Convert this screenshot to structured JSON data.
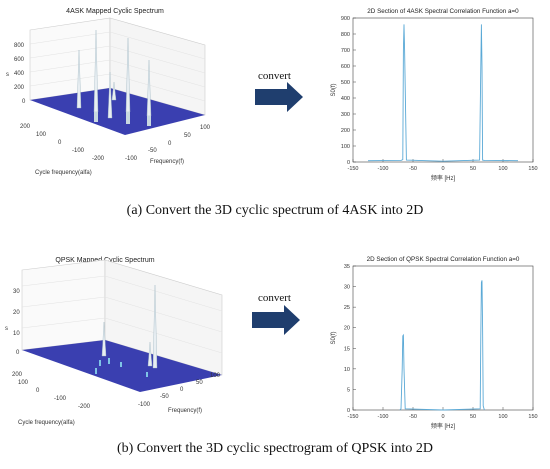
{
  "panels": [
    {
      "id": "a",
      "caption": "(a) Convert the 3D cyclic spectrum of 4ASK into 2D",
      "arrow_label": "convert",
      "plot3d": {
        "title": "4ASK Mapped Cyclic Spectrum",
        "zlabel": "s",
        "xlabel": "Frequency(f)",
        "ylabel": "Cycle frequency(alfa)",
        "zticks": [
          "0",
          "200",
          "400",
          "600",
          "800"
        ],
        "xticks": [
          "200",
          "100",
          "0",
          "-100",
          "-200"
        ],
        "freqticks": [
          "-100",
          "-50",
          "0",
          "50",
          "100"
        ]
      },
      "chart": {
        "type": "line",
        "title": "2D Section of 4ASK Spectral Correlation Function a=0",
        "xlabel": "频率 [Hz]",
        "ylabel": "S0(f)",
        "xlim": [
          -150,
          150
        ],
        "ylim": [
          0,
          900
        ],
        "xticks": [
          "-150",
          "-100",
          "-50",
          "0",
          "50",
          "100",
          "150"
        ],
        "yticks": [
          "0",
          "100",
          "200",
          "300",
          "400",
          "500",
          "600",
          "700",
          "800",
          "900"
        ],
        "x": [
          -125,
          -70,
          -67,
          -66,
          -65,
          -64,
          -61,
          0,
          61,
          63,
          64,
          65,
          66,
          69,
          125
        ],
        "y": [
          8,
          10,
          15,
          700,
          860,
          700,
          12,
          5,
          12,
          600,
          860,
          600,
          12,
          10,
          8
        ]
      }
    },
    {
      "id": "b",
      "caption": "(b) Convert the 3D cyclic spectrogram of QPSK into 2D",
      "arrow_label": "convert",
      "plot3d": {
        "title": "QPSK Mapped Cyclic Spectrum",
        "zlabel": "s",
        "xlabel": "Frequency(f)",
        "ylabel": "Cycle frequency(alfa)",
        "zticks": [
          "0",
          "10",
          "20",
          "30"
        ],
        "xticks": [
          "200",
          "100",
          "0",
          "-100",
          "-200"
        ],
        "freqticks": [
          "-100",
          "-50",
          "0",
          "50",
          "100"
        ]
      },
      "chart": {
        "type": "line",
        "title": "2D Section of QPSK Spectral Correlation Function a=0",
        "xlabel": "频率 [Hz]",
        "ylabel": "S0(f)",
        "xlim": [
          -150,
          150
        ],
        "ylim": [
          0,
          35
        ],
        "xticks": [
          "-150",
          "-100",
          "-50",
          "0",
          "50",
          "100",
          "150"
        ],
        "yticks": [
          "0",
          "5",
          "10",
          "15",
          "20",
          "25",
          "30",
          "35"
        ],
        "x": [
          -72,
          -70,
          -68,
          -67,
          -66,
          -65,
          -63,
          0,
          62,
          63,
          64,
          65,
          66,
          67,
          69
        ],
        "y": [
          0,
          0.3,
          10,
          18,
          18.2,
          10,
          0.3,
          0,
          0.3,
          18,
          31,
          31.5,
          20,
          1,
          0
        ]
      }
    }
  ],
  "colors": {
    "line": "#5aa9d6",
    "surface": "#3a3fb0",
    "arrow": "#1f3e6e"
  }
}
